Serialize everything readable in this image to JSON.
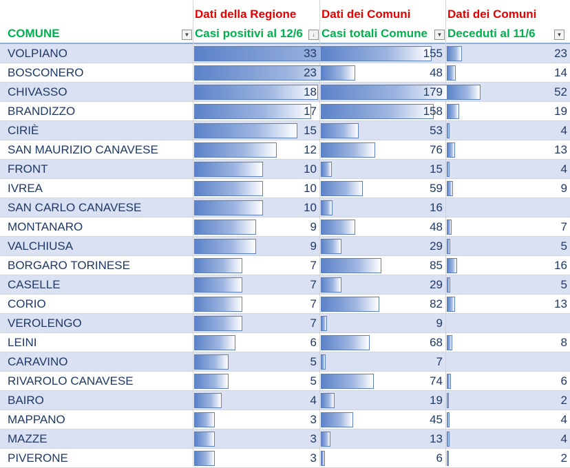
{
  "group_headers": {
    "regione": "Dati della Regione",
    "comuni_1": "Dati dei Comuni",
    "comuni_2": "Dati dei Comuni"
  },
  "columns": {
    "comune": "COMUNE",
    "casi_positivi": "Casi positivi al 12/6",
    "casi_totali": "Casi totali Comune",
    "deceduti": "Deceduti al 11/6"
  },
  "colors": {
    "group_header": "#e00000",
    "column_header": "#00b050",
    "row_text": "#1f3864",
    "band": "#d9e1f2",
    "databar": "#5b82c8"
  },
  "icons": {
    "filter": "filter-dropdown-icon",
    "sort": "sort-descending-icon"
  },
  "rows": [
    {
      "comune": "VOLPIANO",
      "casi_positivi": "33",
      "casi_totali": "155",
      "deceduti": "23"
    },
    {
      "comune": "BOSCONERO",
      "casi_positivi": "23",
      "casi_totali": "48",
      "deceduti": "14"
    },
    {
      "comune": "CHIVASSO",
      "casi_positivi": "18",
      "casi_totali": "179",
      "deceduti": "52"
    },
    {
      "comune": "BRANDIZZO",
      "casi_positivi": "17",
      "casi_totali": "158",
      "deceduti": "19"
    },
    {
      "comune": "CIRIÈ",
      "casi_positivi": "15",
      "casi_totali": "53",
      "deceduti": "4"
    },
    {
      "comune": "SAN MAURIZIO CANAVESE",
      "casi_positivi": "12",
      "casi_totali": "76",
      "deceduti": "13"
    },
    {
      "comune": "FRONT",
      "casi_positivi": "10",
      "casi_totali": "15",
      "deceduti": "4"
    },
    {
      "comune": "IVREA",
      "casi_positivi": "10",
      "casi_totali": "59",
      "deceduti": "9"
    },
    {
      "comune": "SAN CARLO CANAVESE",
      "casi_positivi": "10",
      "casi_totali": "16",
      "deceduti": ""
    },
    {
      "comune": "MONTANARO",
      "casi_positivi": "9",
      "casi_totali": "48",
      "deceduti": "7"
    },
    {
      "comune": "VALCHIUSA",
      "casi_positivi": "9",
      "casi_totali": "29",
      "deceduti": "5"
    },
    {
      "comune": "BORGARO TORINESE",
      "casi_positivi": "7",
      "casi_totali": "85",
      "deceduti": "16"
    },
    {
      "comune": "CASELLE",
      "casi_positivi": "7",
      "casi_totali": "29",
      "deceduti": "5"
    },
    {
      "comune": "CORIO",
      "casi_positivi": "7",
      "casi_totali": "82",
      "deceduti": "13"
    },
    {
      "comune": "VEROLENGO",
      "casi_positivi": "7",
      "casi_totali": "9",
      "deceduti": ""
    },
    {
      "comune": "LEINI",
      "casi_positivi": "6",
      "casi_totali": "68",
      "deceduti": "8"
    },
    {
      "comune": "CARAVINO",
      "casi_positivi": "5",
      "casi_totali": "7",
      "deceduti": ""
    },
    {
      "comune": "RIVAROLO CANAVESE",
      "casi_positivi": "5",
      "casi_totali": "74",
      "deceduti": "6"
    },
    {
      "comune": "BAIRO",
      "casi_positivi": "4",
      "casi_totali": "19",
      "deceduti": "2"
    },
    {
      "comune": "MAPPANO",
      "casi_positivi": "3",
      "casi_totali": "45",
      "deceduti": "4"
    },
    {
      "comune": "MAZZE",
      "casi_positivi": "3",
      "casi_totali": "13",
      "deceduti": "4"
    },
    {
      "comune": "PIVERONE",
      "casi_positivi": "3",
      "casi_totali": "6",
      "deceduti": "2"
    }
  ]
}
